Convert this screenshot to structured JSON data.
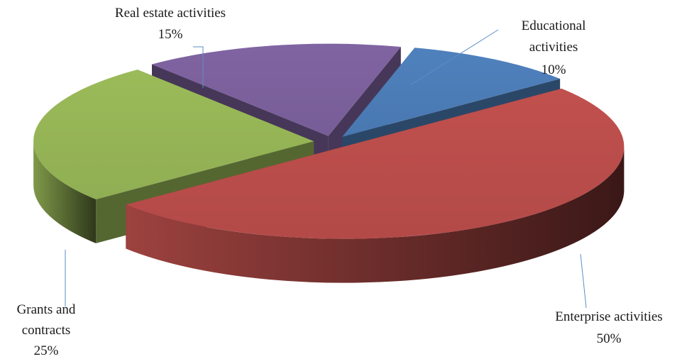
{
  "chart_data": {
    "type": "pie",
    "title": "",
    "style": "3D exploded pie",
    "slices": [
      {
        "label": "Educational activities",
        "label_lines": [
          "Educational",
          "activities"
        ],
        "value": 10,
        "value_text": "10%",
        "color": "#4f81bd"
      },
      {
        "label": "Enterprise activities",
        "label_lines": [
          "Enterprise activities"
        ],
        "value": 50,
        "value_text": "50%",
        "color": "#c0504d"
      },
      {
        "label": "Grants and contracts",
        "label_lines": [
          "Grants and",
          "contracts"
        ],
        "value": 25,
        "value_text": "25%",
        "color": "#9bbb59"
      },
      {
        "label": "Real estate activities",
        "label_lines": [
          "Real estate activities"
        ],
        "value": 15,
        "value_text": "15%",
        "color": "#8064a2"
      }
    ]
  }
}
